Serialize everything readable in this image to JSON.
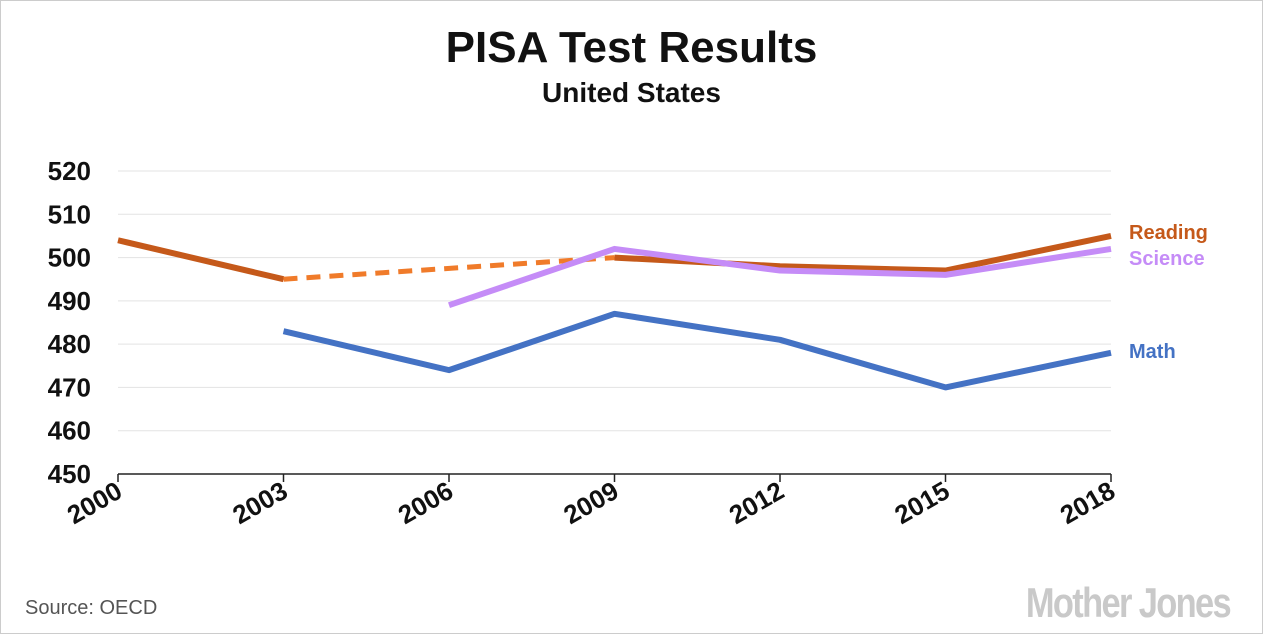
{
  "chart_data": {
    "type": "line",
    "title": "PISA Test Results",
    "subtitle": "United States",
    "xlabel": "",
    "ylabel": "",
    "x": [
      2000,
      2003,
      2006,
      2009,
      2012,
      2015,
      2018
    ],
    "x_tick_labels": [
      "2000",
      "2003",
      "2006",
      "2009",
      "2012",
      "2015",
      "2018"
    ],
    "y_ticks": [
      450,
      460,
      470,
      480,
      490,
      500,
      510,
      520
    ],
    "y_tick_labels": [
      "450",
      "460",
      "470",
      "480",
      "490",
      "500",
      "510",
      "520"
    ],
    "ylim": [
      450,
      520
    ],
    "grid": true,
    "series": [
      {
        "name": "Reading",
        "color": "#c5591a",
        "values": [
          504,
          495,
          null,
          500,
          498,
          497,
          505
        ],
        "dashed_segment": {
          "color": "#f07b2a",
          "from": [
            2003,
            495
          ],
          "to": [
            2009,
            500
          ]
        }
      },
      {
        "name": "Science",
        "color": "#c58cf7",
        "values": [
          null,
          null,
          489,
          502,
          497,
          496,
          502
        ]
      },
      {
        "name": "Math",
        "color": "#4472c4",
        "values": [
          null,
          483,
          474,
          487,
          481,
          470,
          478
        ]
      }
    ],
    "legend_placement": "right, inline labels at line ends"
  },
  "source": "Source:  OECD",
  "logo": "Mother Jones"
}
